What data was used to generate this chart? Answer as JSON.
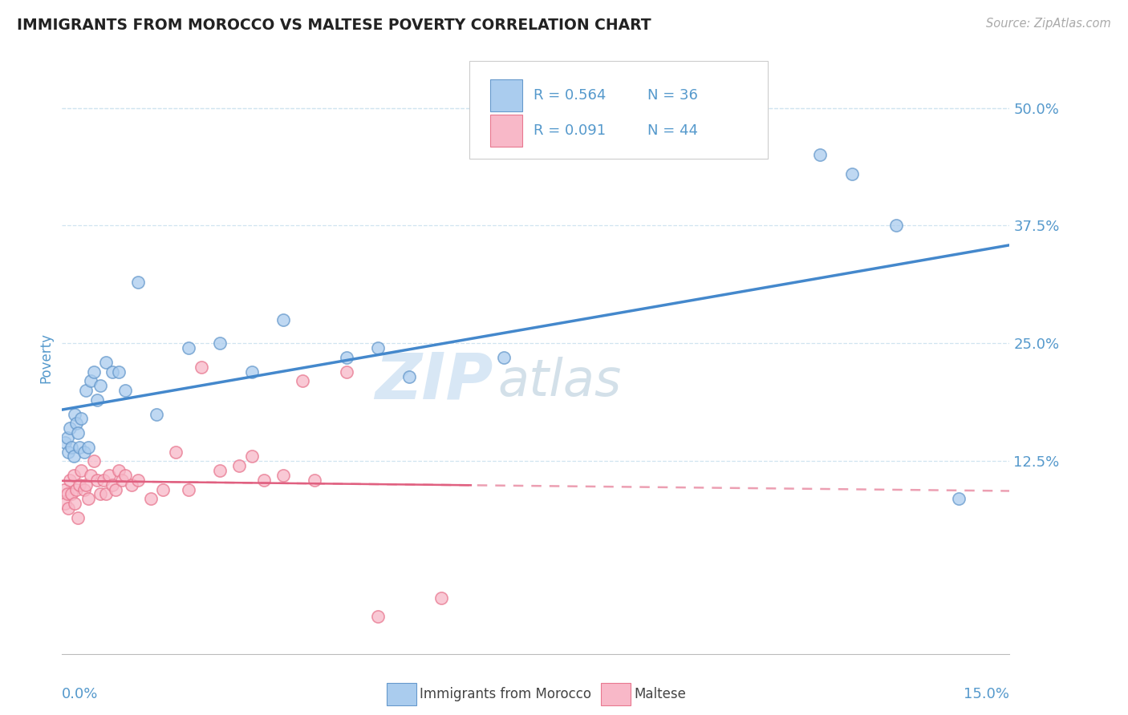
{
  "title": "IMMIGRANTS FROM MOROCCO VS MALTESE POVERTY CORRELATION CHART",
  "source": "Source: ZipAtlas.com",
  "xlim": [
    0.0,
    15.0
  ],
  "ylim": [
    -8.0,
    55.0
  ],
  "yticks": [
    12.5,
    25.0,
    37.5,
    50.0
  ],
  "ytick_labels": [
    "12.5%",
    "25.0%",
    "37.5%",
    "50.0%"
  ],
  "watermark_zip": "ZIP",
  "watermark_atlas": "atlas",
  "ylabel": "Poverty",
  "legend_r1": "R = 0.564",
  "legend_n1": "N = 36",
  "legend_r2": "R = 0.091",
  "legend_n2": "N = 44",
  "color_blue_face": "#aaccee",
  "color_blue_edge": "#6699cc",
  "color_pink_face": "#f8b8c8",
  "color_pink_edge": "#e87890",
  "color_blue_line": "#4488cc",
  "color_pink_line": "#e06080",
  "color_axis_text": "#5599cc",
  "color_grid": "#d0e4f0",
  "color_watermark_blue": "#b8d4ee",
  "color_watermark_gray": "#b0c8d8",
  "color_title": "#222222",
  "color_source": "#aaaaaa",
  "legend_label_morocco": "Immigrants from Morocco",
  "legend_label_maltese": "Maltese",
  "morocco_x": [
    0.05,
    0.08,
    0.1,
    0.12,
    0.15,
    0.18,
    0.2,
    0.22,
    0.25,
    0.28,
    0.3,
    0.35,
    0.38,
    0.42,
    0.45,
    0.5,
    0.55,
    0.6,
    0.7,
    0.8,
    0.9,
    1.0,
    1.2,
    1.5,
    2.0,
    2.5,
    3.0,
    3.5,
    4.5,
    5.0,
    5.5,
    7.0,
    12.0,
    12.5,
    13.2,
    14.2
  ],
  "morocco_y": [
    14.5,
    15.0,
    13.5,
    16.0,
    14.0,
    13.0,
    17.5,
    16.5,
    15.5,
    14.0,
    17.0,
    13.5,
    20.0,
    14.0,
    21.0,
    22.0,
    19.0,
    20.5,
    23.0,
    22.0,
    22.0,
    20.0,
    31.5,
    17.5,
    24.5,
    25.0,
    22.0,
    27.5,
    23.5,
    24.5,
    21.5,
    23.5,
    45.0,
    43.0,
    37.5,
    8.5
  ],
  "morocco_sizes": [
    30,
    30,
    30,
    30,
    30,
    30,
    30,
    30,
    30,
    30,
    30,
    30,
    30,
    30,
    30,
    30,
    30,
    30,
    30,
    30,
    30,
    30,
    30,
    30,
    30,
    30,
    30,
    30,
    30,
    30,
    30,
    30,
    30,
    30,
    30,
    30
  ],
  "maltese_x": [
    0.03,
    0.05,
    0.08,
    0.1,
    0.12,
    0.15,
    0.18,
    0.2,
    0.22,
    0.25,
    0.28,
    0.3,
    0.35,
    0.38,
    0.42,
    0.45,
    0.5,
    0.55,
    0.6,
    0.65,
    0.7,
    0.75,
    0.8,
    0.85,
    0.9,
    0.95,
    1.0,
    1.1,
    1.2,
    1.4,
    1.6,
    1.8,
    2.0,
    2.2,
    2.5,
    2.8,
    3.0,
    3.2,
    3.5,
    3.8,
    4.0,
    4.5,
    5.0,
    6.0
  ],
  "maltese_y": [
    9.5,
    8.0,
    9.0,
    7.5,
    10.5,
    9.0,
    11.0,
    8.0,
    9.5,
    6.5,
    10.0,
    11.5,
    9.5,
    10.0,
    8.5,
    11.0,
    12.5,
    10.5,
    9.0,
    10.5,
    9.0,
    11.0,
    10.0,
    9.5,
    11.5,
    10.5,
    11.0,
    10.0,
    10.5,
    8.5,
    9.5,
    13.5,
    9.5,
    22.5,
    11.5,
    12.0,
    13.0,
    10.5,
    11.0,
    21.0,
    10.5,
    22.0,
    -4.0,
    -2.0
  ],
  "maltese_sizes": [
    30,
    30,
    30,
    30,
    30,
    30,
    30,
    30,
    30,
    30,
    30,
    30,
    30,
    30,
    30,
    30,
    30,
    30,
    30,
    30,
    30,
    30,
    30,
    30,
    30,
    30,
    30,
    30,
    30,
    30,
    30,
    30,
    30,
    30,
    30,
    30,
    30,
    30,
    30,
    30,
    30,
    30,
    30,
    30
  ]
}
